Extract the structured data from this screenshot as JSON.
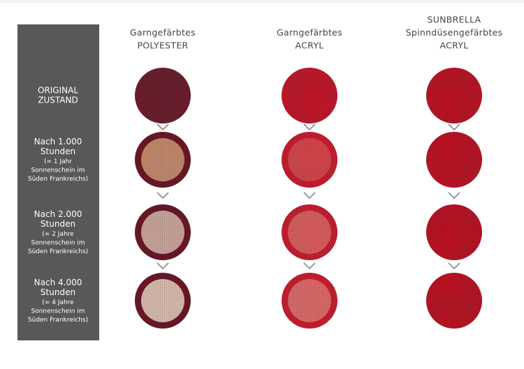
{
  "columns": [
    {
      "lines": [
        "Garngefärbtes",
        "POLYESTER"
      ]
    },
    {
      "lines": [
        "Garngefärbtes",
        "ACRYL"
      ]
    },
    {
      "lines": [
        "SUNBRELLA",
        "Spinndüsengefärbtes",
        "ACRYL"
      ]
    }
  ],
  "rows": [
    {
      "label": [
        "ORIGINAL",
        "ZUSTAND"
      ],
      "note": []
    },
    {
      "label": [
        "Nach 1.000",
        "Stunden"
      ],
      "note": [
        "(= 1 Jahr",
        "Sonnenschein im",
        "Süden Frankreichs)"
      ]
    },
    {
      "label": [
        "Nach 2.000",
        "Stunden"
      ],
      "note": [
        "(= 2 Jahre",
        "Sonnenschein im",
        "Süden Frankreichs)"
      ]
    },
    {
      "label": [
        "Nach 4.000",
        "Stunden"
      ],
      "note": [
        "(= 4 Jahre",
        "Sonnenschein im",
        "Süden Frankreichs)"
      ]
    }
  ]
}
